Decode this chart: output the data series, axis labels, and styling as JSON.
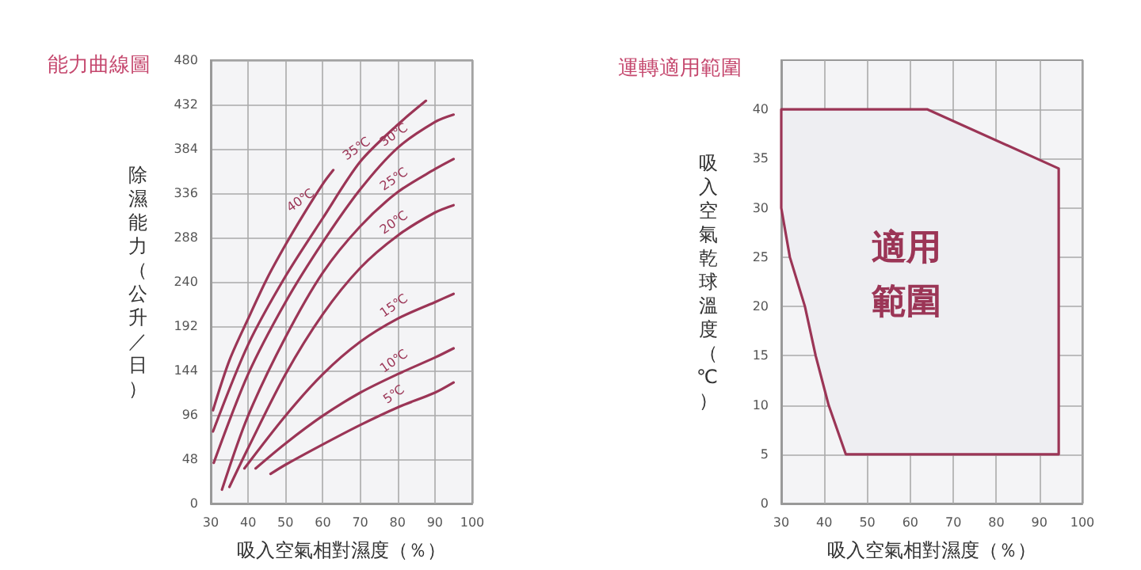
{
  "chart_data": [
    {
      "type": "line",
      "title": "能力曲線圖",
      "xlabel": "吸入空氣相對濕度（％）",
      "ylabel": "除濕能力（公升／日）",
      "xlim": [
        30,
        100
      ],
      "xticks": [
        30,
        40,
        50,
        60,
        70,
        80,
        90,
        100
      ],
      "ylim": [
        0,
        480
      ],
      "yticks": [
        0,
        48,
        96,
        144,
        192,
        240,
        288,
        336,
        384,
        432,
        480
      ],
      "grid": true,
      "legend": false,
      "marker": "none",
      "series": [
        {
          "name": "40℃",
          "color": "#9b3556",
          "x": [
            30.6,
            35,
            40,
            45,
            50,
            55,
            60,
            62.8
          ],
          "values": [
            101,
            155,
            200,
            243,
            280,
            314,
            346,
            361
          ]
        },
        {
          "name": "35℃",
          "color": "#9b3556",
          "x": [
            30.6,
            40,
            50,
            60,
            70,
            80,
            87.6
          ],
          "values": [
            78,
            172,
            246,
            309,
            370,
            410,
            436
          ]
        },
        {
          "name": "30℃",
          "color": "#9b3556",
          "x": [
            30.8,
            40,
            50,
            60,
            70,
            80,
            90,
            95
          ],
          "values": [
            44,
            140,
            218,
            283,
            340,
            385,
            413,
            421
          ]
        },
        {
          "name": "25℃",
          "color": "#9b3556",
          "x": [
            33,
            40,
            50,
            60,
            70,
            80,
            90,
            95
          ],
          "values": [
            15,
            95,
            180,
            250,
            300,
            337,
            362,
            373
          ]
        },
        {
          "name": "20℃",
          "color": "#9b3556",
          "x": [
            35,
            40,
            50,
            60,
            70,
            80,
            90,
            95
          ],
          "values": [
            18,
            60,
            140,
            205,
            255,
            290,
            315,
            323
          ]
        },
        {
          "name": "15℃",
          "color": "#9b3556",
          "x": [
            39,
            50,
            60,
            70,
            80,
            90,
            95
          ],
          "values": [
            38,
            95,
            140,
            175,
            200,
            218,
            227
          ]
        },
        {
          "name": "10℃",
          "color": "#9b3556",
          "x": [
            42,
            50,
            60,
            70,
            80,
            90,
            95
          ],
          "values": [
            38,
            65,
            95,
            120,
            140,
            158,
            168
          ]
        },
        {
          "name": "5℃",
          "color": "#9b3556",
          "x": [
            46,
            50,
            60,
            70,
            80,
            90,
            95
          ],
          "values": [
            32,
            42,
            64,
            85,
            104,
            120,
            131
          ]
        }
      ]
    },
    {
      "type": "area",
      "title": "運轉適用範圍",
      "xlabel": "吸入空氣相對濕度（％）",
      "ylabel": "吸入空氣乾球溫度（℃）",
      "xlim": [
        30,
        100
      ],
      "xticks": [
        30,
        40,
        50,
        60,
        70,
        80,
        90,
        100
      ],
      "ylim": [
        0,
        45
      ],
      "yticks": [
        0,
        5,
        10,
        15,
        20,
        25,
        30,
        35,
        40
      ],
      "grid": true,
      "legend": false,
      "annotations": [
        "適用範圍"
      ],
      "series": [
        {
          "color": "#9b3556",
          "x": [
            30,
            64,
            94.5,
            94.5,
            45,
            41,
            38,
            35.5,
            32,
            30
          ],
          "values": [
            40,
            40,
            34,
            5,
            5,
            10,
            15,
            20,
            25,
            30
          ]
        }
      ]
    }
  ]
}
